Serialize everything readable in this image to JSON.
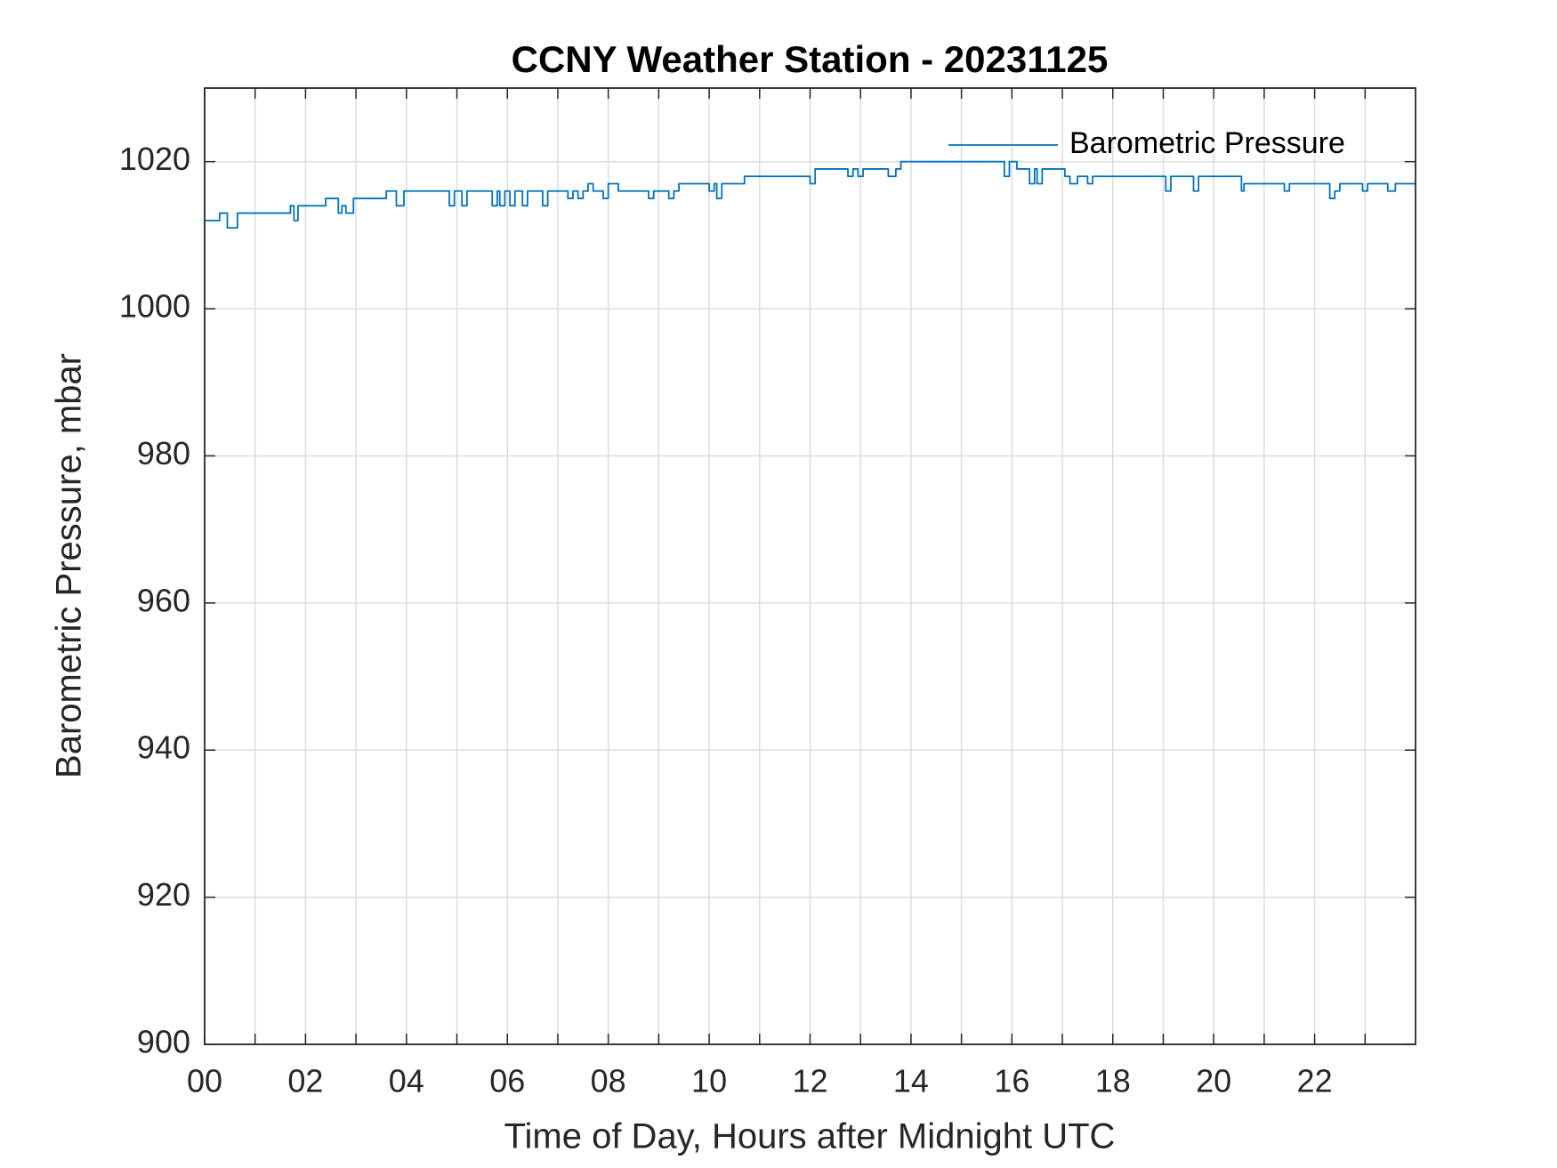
{
  "chart_data": {
    "type": "line",
    "title": "CCNY Weather Station - 20231125",
    "x_label": "Time of Day, Hours after Midnight UTC",
    "y_label": "Barometric Pressure, mbar",
    "xlim": [
      0,
      24
    ],
    "xticks": [
      {
        "value": 0,
        "label": "00"
      },
      {
        "value": 2,
        "label": "02"
      },
      {
        "value": 4,
        "label": "04"
      },
      {
        "value": 6,
        "label": "06"
      },
      {
        "value": 8,
        "label": "08"
      },
      {
        "value": 10,
        "label": "10"
      },
      {
        "value": 12,
        "label": "12"
      },
      {
        "value": 14,
        "label": "14"
      },
      {
        "value": 16,
        "label": "16"
      },
      {
        "value": 18,
        "label": "18"
      },
      {
        "value": 20,
        "label": "20"
      },
      {
        "value": 22,
        "label": "22"
      }
    ],
    "xminor_ticks": [
      1,
      3,
      5,
      7,
      9,
      11,
      13,
      15,
      17,
      19,
      21,
      23
    ],
    "ylim": [
      900,
      1030
    ],
    "yticks": [
      900,
      920,
      940,
      960,
      980,
      1000,
      1020
    ],
    "grid": true,
    "legend": "upper right",
    "x": [
      0,
      0.3,
      0.3,
      0.45,
      0.45,
      0.65,
      0.65,
      1.7,
      1.7,
      1.77,
      1.77,
      1.85,
      1.85,
      2.4,
      2.4,
      2.65,
      2.65,
      2.72,
      2.72,
      2.8,
      2.8,
      2.95,
      2.95,
      3.6,
      3.6,
      3.8,
      3.8,
      3.95,
      3.95,
      4.85,
      4.85,
      4.95,
      4.95,
      5.1,
      5.1,
      5.2,
      5.2,
      5.7,
      5.7,
      5.8,
      5.8,
      5.85,
      5.85,
      5.95,
      5.95,
      6.05,
      6.05,
      6.15,
      6.15,
      6.3,
      6.3,
      6.4,
      6.4,
      6.7,
      6.7,
      6.8,
      6.8,
      7.2,
      7.2,
      7.3,
      7.3,
      7.4,
      7.4,
      7.5,
      7.5,
      7.6,
      7.6,
      7.7,
      7.7,
      7.9,
      7.9,
      8.0,
      8.0,
      8.2,
      8.2,
      8.8,
      8.8,
      8.9,
      8.9,
      9.2,
      9.2,
      9.3,
      9.3,
      9.4,
      9.4,
      10.0,
      10.0,
      10.1,
      10.1,
      10.15,
      10.15,
      10.25,
      10.25,
      10.7,
      10.7,
      12.0,
      12.0,
      12.1,
      12.1,
      12.75,
      12.75,
      12.85,
      12.85,
      12.95,
      12.95,
      13.05,
      13.05,
      13.55,
      13.55,
      13.7,
      13.7,
      13.8,
      13.8,
      15.85,
      15.85,
      15.95,
      15.95,
      16.1,
      16.1,
      16.35,
      16.35,
      16.45,
      16.45,
      16.5,
      16.5,
      16.6,
      16.6,
      17.05,
      17.05,
      17.15,
      17.15,
      17.3,
      17.3,
      17.5,
      17.5,
      17.6,
      17.6,
      19.05,
      19.05,
      19.15,
      19.15,
      19.6,
      19.6,
      19.7,
      19.7,
      20.55,
      20.55,
      20.6,
      20.6,
      21.4,
      21.4,
      21.5,
      21.5,
      22.3,
      22.3,
      22.4,
      22.4,
      22.5,
      22.5,
      22.95,
      22.95,
      23.05,
      23.05,
      23.45,
      23.45,
      23.6,
      23.6,
      24
    ],
    "series": [
      {
        "name": "Barometric Pressure",
        "color": "#0072bd",
        "values": [
          1012,
          1012,
          1013,
          1013,
          1011,
          1011,
          1013,
          1013,
          1014,
          1014,
          1012,
          1012,
          1014,
          1014,
          1015,
          1015,
          1013,
          1013,
          1014,
          1014,
          1013,
          1013,
          1015,
          1015,
          1016,
          1016,
          1014,
          1014,
          1016,
          1016,
          1014,
          1014,
          1016,
          1016,
          1014,
          1014,
          1016,
          1016,
          1014,
          1014,
          1016,
          1016,
          1014,
          1014,
          1016,
          1016,
          1014,
          1014,
          1016,
          1016,
          1014,
          1014,
          1016,
          1016,
          1014,
          1014,
          1016,
          1016,
          1015,
          1015,
          1016,
          1016,
          1015,
          1015,
          1016,
          1016,
          1017,
          1017,
          1016,
          1016,
          1015,
          1015,
          1017,
          1017,
          1016,
          1016,
          1015,
          1015,
          1016,
          1016,
          1015,
          1015,
          1016,
          1016,
          1017,
          1017,
          1016,
          1016,
          1017,
          1017,
          1015,
          1015,
          1017,
          1017,
          1018,
          1018,
          1017,
          1017,
          1019,
          1019,
          1018,
          1018,
          1019,
          1019,
          1018,
          1018,
          1019,
          1019,
          1018,
          1018,
          1019,
          1019,
          1020,
          1020,
          1018,
          1018,
          1020,
          1020,
          1019,
          1019,
          1017,
          1017,
          1019,
          1019,
          1017,
          1017,
          1019,
          1019,
          1018,
          1018,
          1017,
          1017,
          1018,
          1018,
          1017,
          1017,
          1018,
          1018,
          1016,
          1016,
          1018,
          1018,
          1016,
          1016,
          1018,
          1018,
          1016,
          1016,
          1017,
          1017,
          1016,
          1016,
          1017,
          1017,
          1015,
          1015,
          1016,
          1016,
          1017,
          1017,
          1016,
          1016,
          1017,
          1017,
          1016,
          1016,
          1017,
          1017
        ]
      }
    ]
  }
}
